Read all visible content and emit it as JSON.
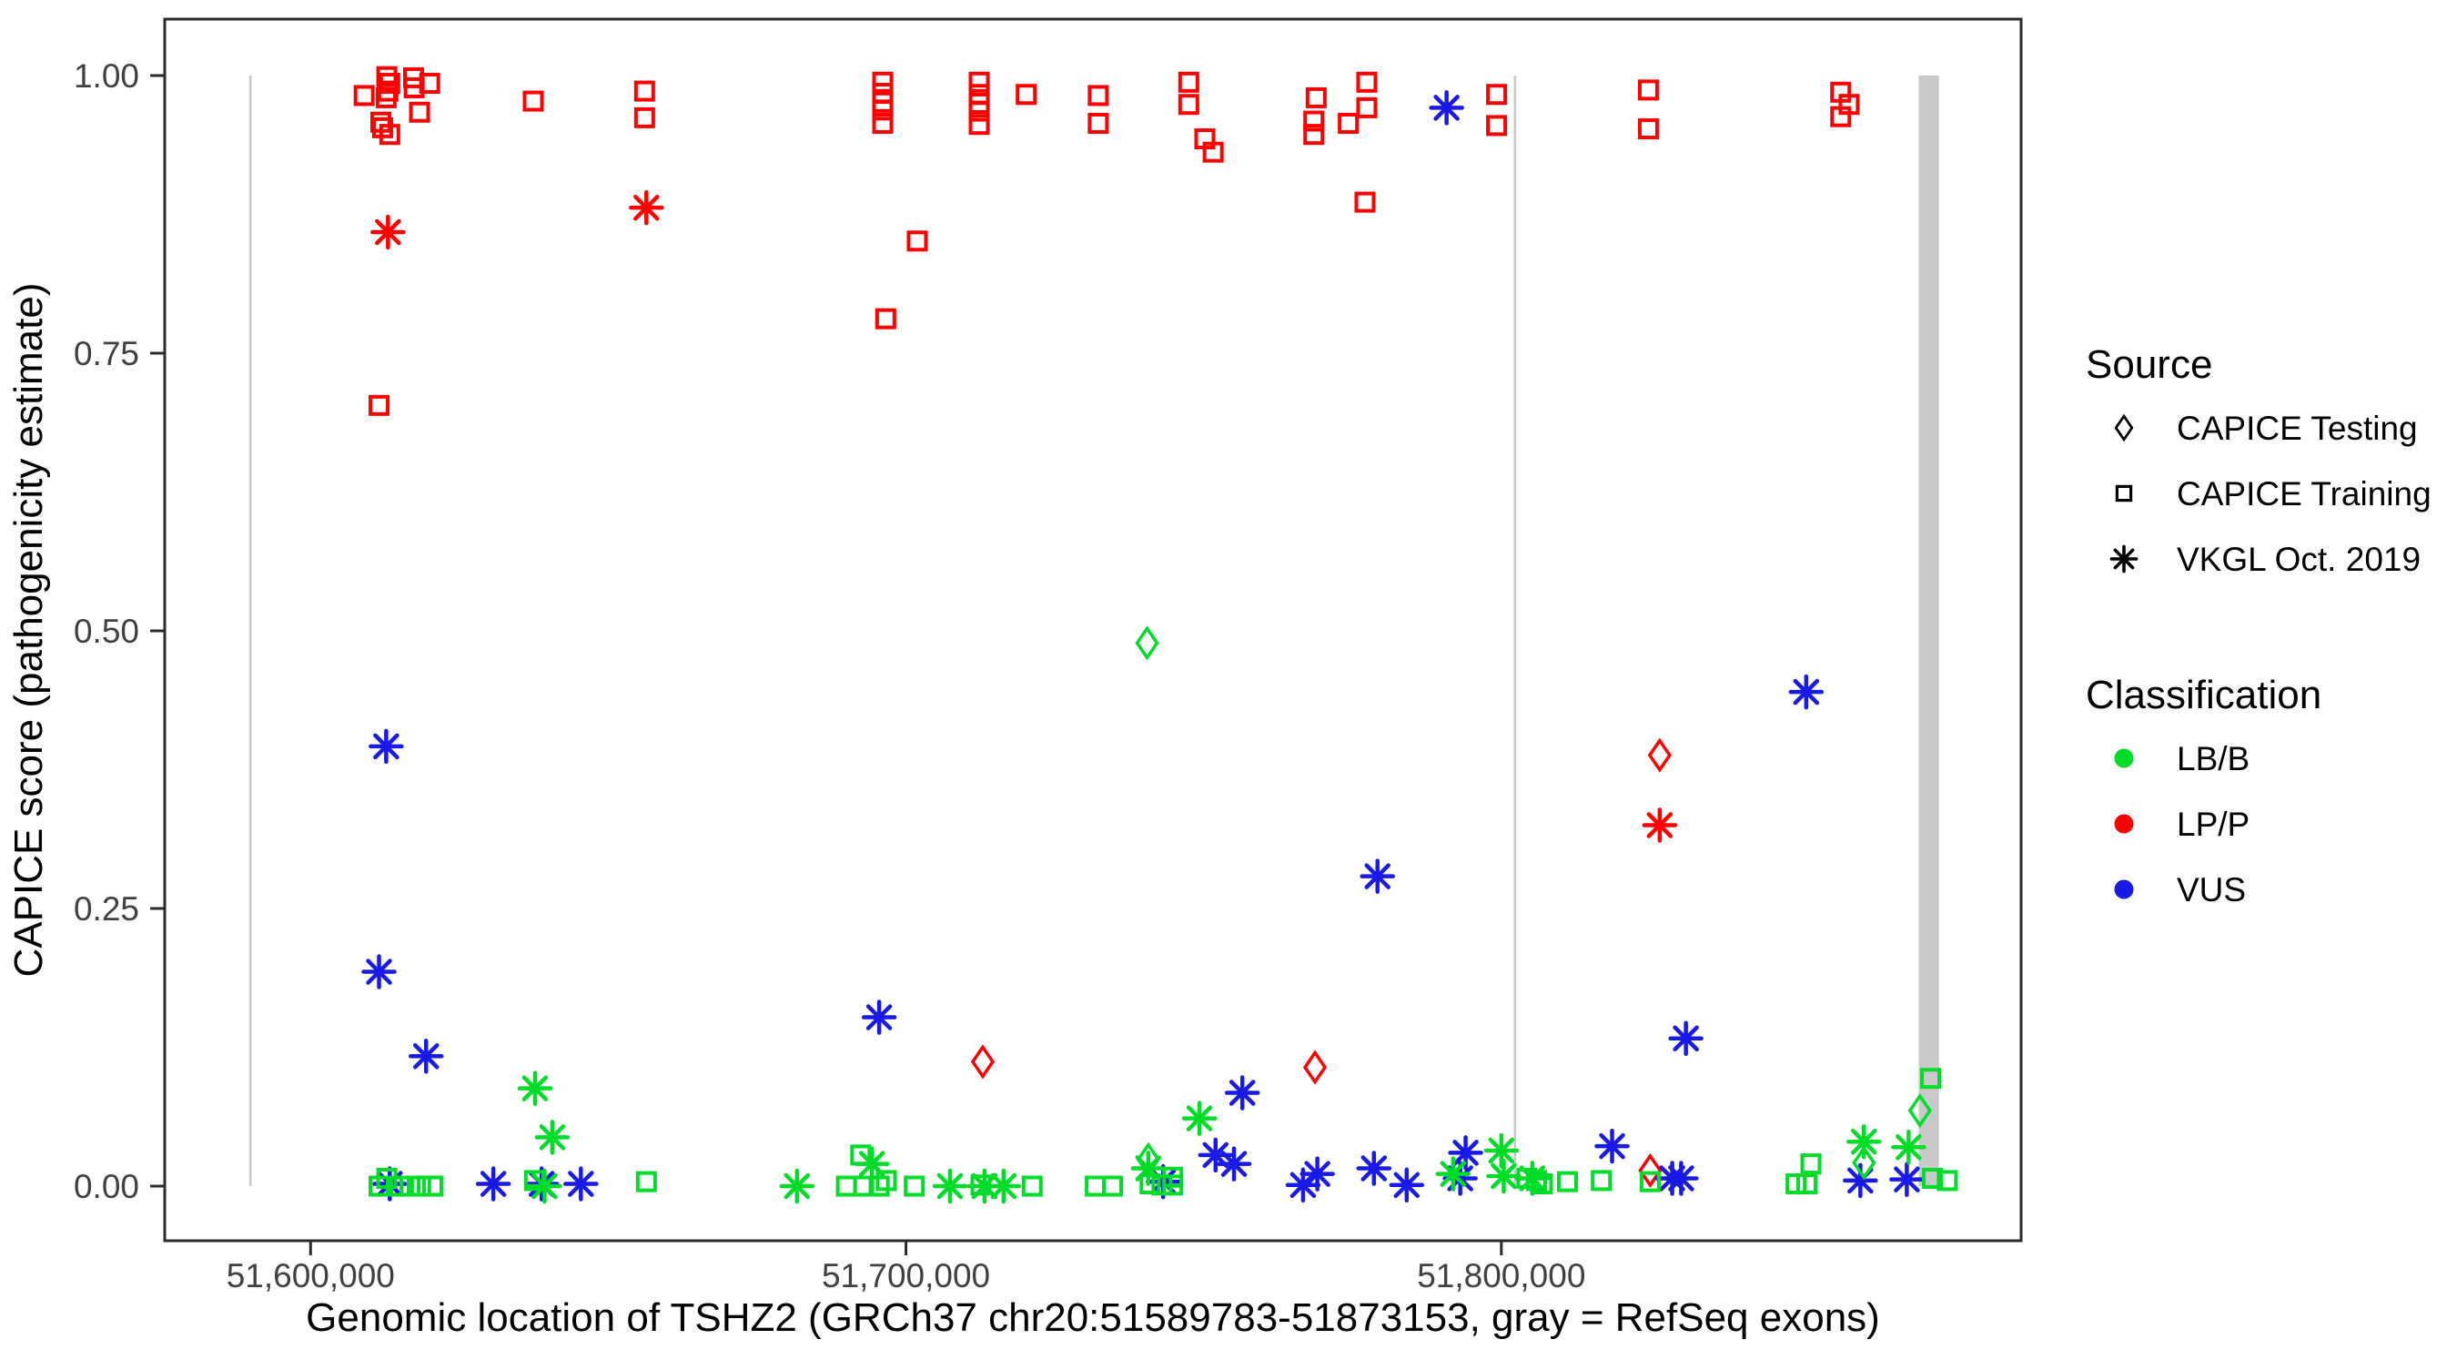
{
  "labels": {
    "y_title": "CAPICE score (pathogenicity estimate)",
    "x_title": "Genomic location of TSHZ2 (GRCh37 chr20:51589783-51873153, gray = RefSeq exons)"
  },
  "legend": {
    "source_title": "Source",
    "source_items": [
      {
        "label": "CAPICE Testing",
        "symbol": "diamond"
      },
      {
        "label": "CAPICE Training",
        "symbol": "square"
      },
      {
        "label": "VKGL Oct. 2019",
        "symbol": "asterisk"
      }
    ],
    "classification_title": "Classification",
    "classification_items": [
      {
        "label": "LB/B",
        "color": "#00DC28"
      },
      {
        "label": "LP/P",
        "color": "#FF0000"
      },
      {
        "label": "VUS",
        "color": "#1A1AE6"
      }
    ]
  },
  "colors": {
    "LB/B": "#00DC28",
    "LP/P": "#FF0000",
    "VUS": "#1A1AE6",
    "exon": "#C9C9C9",
    "tick_text": "#404040",
    "panel_border": "#2b2b2b",
    "legend_symbol": "#000000"
  },
  "chart_data": {
    "type": "scatter",
    "title": "",
    "xlabel": "Genomic location of TSHZ2 (GRCh37 chr20:51589783-51873153, gray = RefSeq exons)",
    "ylabel": "CAPICE score (pathogenicity estimate)",
    "x_domain": [
      51575500,
      51887300
    ],
    "y_domain": [
      0,
      1
    ],
    "grid": false,
    "legend_position": "right",
    "x_ticks": [
      {
        "label": "51,600,000",
        "value": 51600000
      },
      {
        "label": "51,700,000",
        "value": 51700000
      },
      {
        "label": "51,800,000",
        "value": 51800000
      }
    ],
    "y_ticks": [
      {
        "label": "0.00",
        "value": 0.0
      },
      {
        "label": "0.25",
        "value": 0.25
      },
      {
        "label": "0.50",
        "value": 0.5
      },
      {
        "label": "0.75",
        "value": 0.75
      },
      {
        "label": "1.00",
        "value": 1.0
      }
    ],
    "refseq_exons": [
      {
        "start": 51589700,
        "end": 51590100
      },
      {
        "start": 51802100,
        "end": 51802500
      },
      {
        "start": 51870100,
        "end": 51873500
      }
    ],
    "series": [
      {
        "classification": "LP/P",
        "source": "CAPICE Training",
        "symbol": "square",
        "points": [
          [
            51609000,
            0.982
          ],
          [
            51612800,
            0.999
          ],
          [
            51613300,
            0.993
          ],
          [
            51613000,
            0.986
          ],
          [
            51612700,
            0.98
          ],
          [
            51611800,
            0.958
          ],
          [
            51612100,
            0.953
          ],
          [
            51613300,
            0.947
          ],
          [
            51617300,
            0.998
          ],
          [
            51617400,
            0.989
          ],
          [
            51620000,
            0.993
          ],
          [
            51618300,
            0.967
          ],
          [
            51637400,
            0.977
          ],
          [
            51656100,
            0.986
          ],
          [
            51656100,
            0.962
          ],
          [
            51696100,
            0.994
          ],
          [
            51696100,
            0.984
          ],
          [
            51696100,
            0.976
          ],
          [
            51696100,
            0.969
          ],
          [
            51696100,
            0.957
          ],
          [
            51712300,
            0.994
          ],
          [
            51712300,
            0.983
          ],
          [
            51712300,
            0.975
          ],
          [
            51712300,
            0.968
          ],
          [
            51712300,
            0.956
          ],
          [
            51720200,
            0.983
          ],
          [
            51732300,
            0.982
          ],
          [
            51732300,
            0.957
          ],
          [
            51747500,
            0.994
          ],
          [
            51747500,
            0.974
          ],
          [
            51750200,
            0.943
          ],
          [
            51751600,
            0.931
          ],
          [
            51768900,
            0.98
          ],
          [
            51768500,
            0.959
          ],
          [
            51768500,
            0.947
          ],
          [
            51774300,
            0.957
          ],
          [
            51777400,
            0.994
          ],
          [
            51777400,
            0.971
          ],
          [
            51799200,
            0.983
          ],
          [
            51799200,
            0.955
          ],
          [
            51824700,
            0.987
          ],
          [
            51824700,
            0.952
          ],
          [
            51857000,
            0.985
          ],
          [
            51858400,
            0.974
          ],
          [
            51857000,
            0.963
          ],
          [
            51701900,
            0.851
          ],
          [
            51696600,
            0.781
          ],
          [
            51777100,
            0.886
          ],
          [
            51611500,
            0.703
          ]
        ]
      },
      {
        "classification": "LP/P",
        "source": "VKGL Oct. 2019",
        "symbol": "asterisk",
        "points": [
          [
            51613000,
            0.859
          ],
          [
            51656400,
            0.881
          ],
          [
            51826600,
            0.325
          ]
        ]
      },
      {
        "classification": "LP/P",
        "source": "CAPICE Testing",
        "symbol": "diamond",
        "points": [
          [
            51712900,
            0.112
          ],
          [
            51768700,
            0.107
          ],
          [
            51826600,
            0.388
          ],
          [
            51825000,
            0.014
          ]
        ]
      },
      {
        "classification": "VUS",
        "source": "VKGL Oct. 2019",
        "symbol": "asterisk",
        "points": [
          [
            51790800,
            0.971
          ],
          [
            51612700,
            0.396
          ],
          [
            51611500,
            0.193
          ],
          [
            51619400,
            0.117
          ],
          [
            51695500,
            0.152
          ],
          [
            51851200,
            0.445
          ],
          [
            51779200,
            0.279
          ],
          [
            51831000,
            0.133
          ],
          [
            51756500,
            0.084
          ],
          [
            51613300,
            0.002
          ],
          [
            51630700,
            0.002
          ],
          [
            51645400,
            0.002
          ],
          [
            51638800,
            0.002
          ],
          [
            51743200,
            0.004
          ],
          [
            51752000,
            0.028
          ],
          [
            51755100,
            0.02
          ],
          [
            51766700,
            0.001
          ],
          [
            51769100,
            0.011
          ],
          [
            51778600,
            0.016
          ],
          [
            51784100,
            0.001
          ],
          [
            51793100,
            0.007
          ],
          [
            51794000,
            0.03
          ],
          [
            51818600,
            0.036
          ],
          [
            51828700,
            0.007
          ],
          [
            51830200,
            0.007
          ],
          [
            51860300,
            0.005
          ],
          [
            51868100,
            0.006
          ]
        ]
      },
      {
        "classification": "LB/B",
        "source": "CAPICE Training",
        "symbol": "square",
        "points": [
          [
            51612800,
            0.007
          ],
          [
            51611500,
            0.0
          ],
          [
            51615000,
            0.0
          ],
          [
            51616700,
            0.0
          ],
          [
            51618500,
            0.0
          ],
          [
            51620500,
            0.0
          ],
          [
            51637600,
            0.005
          ],
          [
            51656400,
            0.004
          ],
          [
            51690000,
            0.0
          ],
          [
            51692900,
            0.0
          ],
          [
            51692400,
            0.028
          ],
          [
            51696700,
            0.005
          ],
          [
            51695500,
            0.0
          ],
          [
            51701400,
            0.0
          ],
          [
            51712600,
            0.001
          ],
          [
            51721200,
            0.0
          ],
          [
            51731800,
            0.0
          ],
          [
            51734700,
            0.0
          ],
          [
            51741000,
            0.002
          ],
          [
            51743000,
            0.001
          ],
          [
            51744800,
            0.001
          ],
          [
            51744800,
            0.008
          ],
          [
            51804300,
            0.007
          ],
          [
            51805900,
            0.005
          ],
          [
            51806900,
            0.002
          ],
          [
            51811100,
            0.004
          ],
          [
            51816800,
            0.005
          ],
          [
            51825000,
            0.004
          ],
          [
            51849500,
            0.002
          ],
          [
            51851300,
            0.002
          ],
          [
            51852000,
            0.02
          ],
          [
            51872100,
            0.097
          ],
          [
            51872400,
            0.007
          ],
          [
            51874900,
            0.005
          ]
        ]
      },
      {
        "classification": "LB/B",
        "source": "VKGL Oct. 2019",
        "symbol": "asterisk",
        "points": [
          [
            51637700,
            0.088
          ],
          [
            51640600,
            0.044
          ],
          [
            51639300,
            0.0
          ],
          [
            51681700,
            0.0
          ],
          [
            51694300,
            0.02
          ],
          [
            51707400,
            0.0
          ],
          [
            51713200,
            0.0
          ],
          [
            51716400,
            0.0
          ],
          [
            51749300,
            0.061
          ],
          [
            51740700,
            0.016
          ],
          [
            51791900,
            0.011
          ],
          [
            51800000,
            0.032
          ],
          [
            51800400,
            0.009
          ],
          [
            51805200,
            0.007
          ],
          [
            51860900,
            0.04
          ],
          [
            51868400,
            0.035
          ]
        ]
      },
      {
        "classification": "LB/B",
        "source": "CAPICE Testing",
        "symbol": "diamond",
        "points": [
          [
            51740500,
            0.489
          ],
          [
            51740700,
            0.024
          ],
          [
            51870300,
            0.068
          ],
          [
            51860900,
            0.021
          ]
        ]
      }
    ]
  }
}
